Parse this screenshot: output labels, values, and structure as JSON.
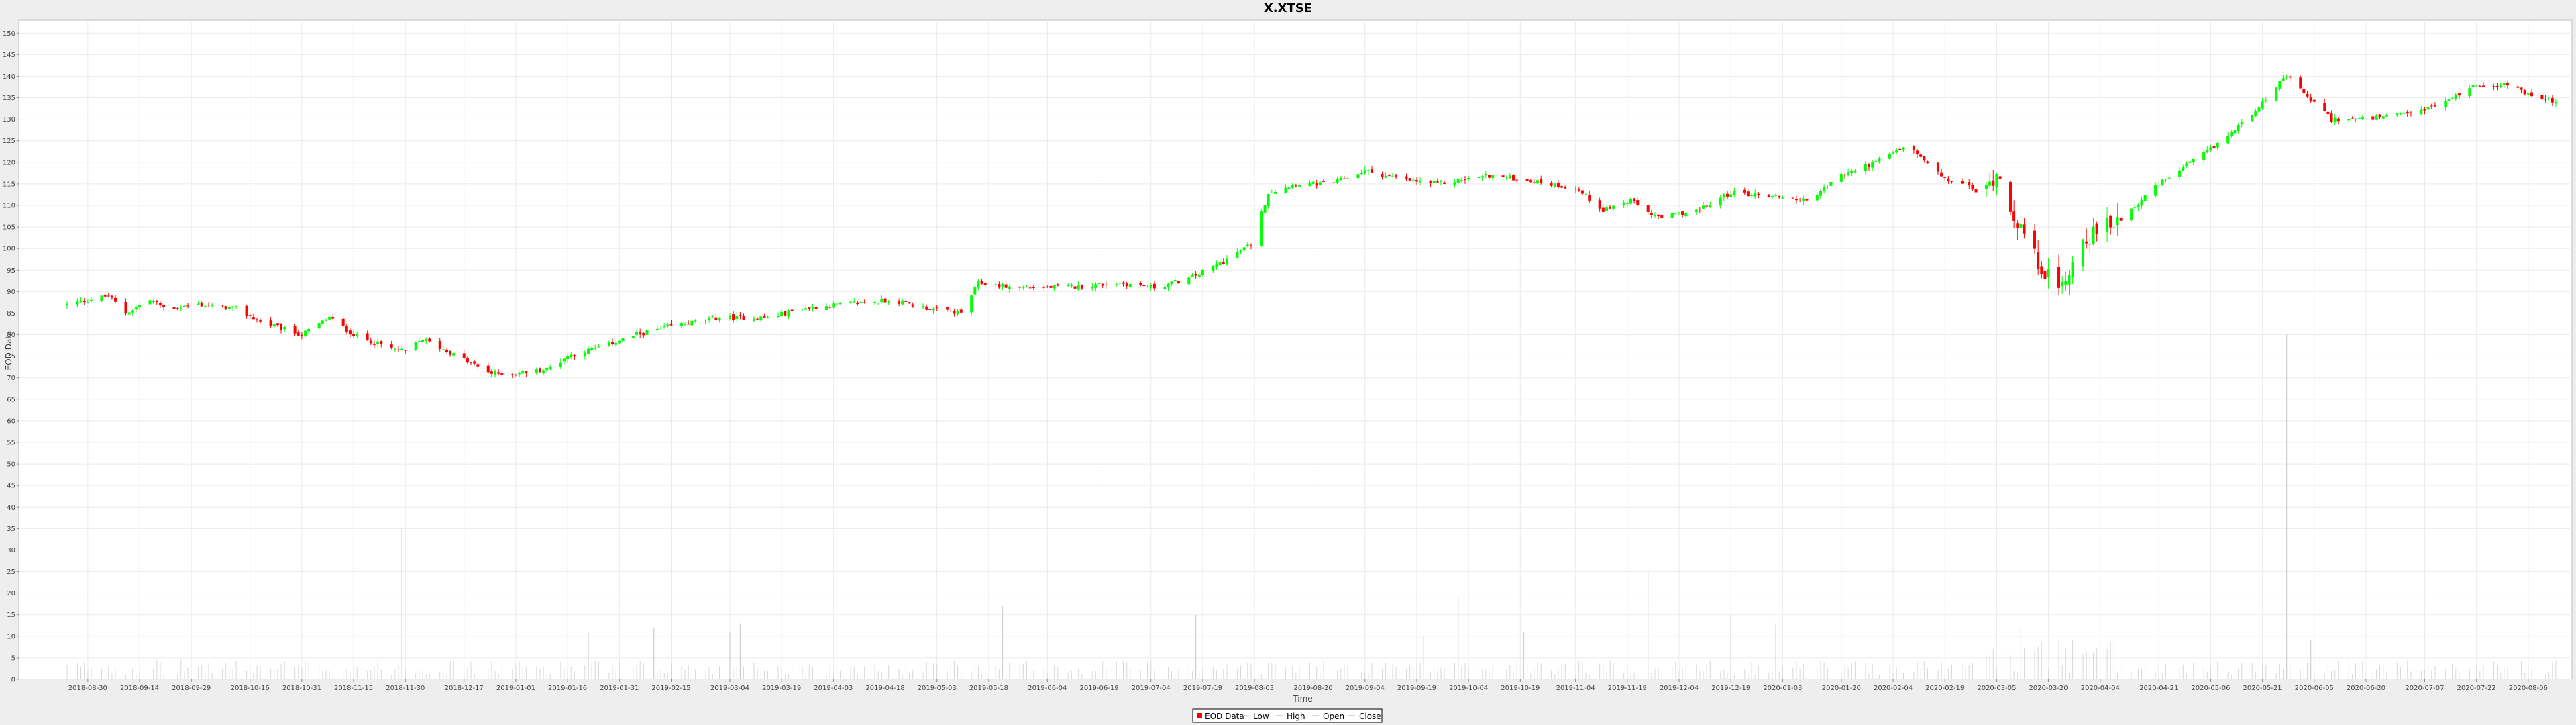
{
  "chart_data": {
    "type": "candlestick",
    "title": "X.XTSE",
    "xlabel": "Time",
    "ylabel": "EOD Data",
    "ylim": [
      0,
      153
    ],
    "yticks": [
      0,
      5,
      10,
      15,
      20,
      25,
      30,
      35,
      40,
      45,
      50,
      55,
      60,
      65,
      70,
      75,
      80,
      85,
      90,
      95,
      100,
      105,
      110,
      115,
      120,
      125,
      130,
      135,
      140,
      145,
      150
    ],
    "x_range": [
      "2018-08-24",
      "2020-08-14"
    ],
    "xticks": [
      "2018-08-30",
      "2018-09-14",
      "2018-09-29",
      "2018-10-16",
      "2018-10-31",
      "2018-11-15",
      "2018-11-30",
      "2018-12-17",
      "2019-01-01",
      "2019-01-16",
      "2019-01-31",
      "2019-02-15",
      "2019-03-04",
      "2019-03-19",
      "2019-04-03",
      "2019-04-18",
      "2019-05-03",
      "2019-05-18",
      "2019-06-04",
      "2019-06-19",
      "2019-07-04",
      "2019-07-19",
      "2019-08-03",
      "2019-08-20",
      "2019-09-04",
      "2019-09-19",
      "2019-10-04",
      "2019-10-19",
      "2019-11-04",
      "2019-11-19",
      "2019-12-04",
      "2019-12-19",
      "2020-01-03",
      "2020-01-20",
      "2020-02-04",
      "2020-02-19",
      "2020-03-05",
      "2020-03-20",
      "2020-04-04",
      "2020-04-21",
      "2020-05-06",
      "2020-05-21",
      "2020-06-05",
      "2020-06-20",
      "2020-07-07",
      "2020-07-22",
      "2020-08-06"
    ],
    "close_path": [
      [
        "2018-08-24",
        87
      ],
      [
        "2018-09-05",
        89
      ],
      [
        "2018-09-10",
        85
      ],
      [
        "2018-09-17",
        88
      ],
      [
        "2018-09-22",
        86
      ],
      [
        "2018-10-01",
        87
      ],
      [
        "2018-10-12",
        86
      ],
      [
        "2018-10-19",
        83
      ],
      [
        "2018-10-31",
        80
      ],
      [
        "2018-11-08",
        84
      ],
      [
        "2018-11-15",
        80
      ],
      [
        "2018-11-25",
        77
      ],
      [
        "2018-11-30",
        76
      ],
      [
        "2018-12-05",
        79
      ],
      [
        "2018-12-15",
        75
      ],
      [
        "2018-12-25",
        71
      ],
      [
        "2019-01-01",
        71
      ],
      [
        "2019-01-10",
        72
      ],
      [
        "2019-01-16",
        75
      ],
      [
        "2019-01-25",
        77
      ],
      [
        "2019-02-05",
        80
      ],
      [
        "2019-02-15",
        82
      ],
      [
        "2019-03-01",
        84
      ],
      [
        "2019-03-15",
        84
      ],
      [
        "2019-03-25",
        86
      ],
      [
        "2019-04-05",
        87
      ],
      [
        "2019-04-20",
        88
      ],
      [
        "2019-05-01",
        86
      ],
      [
        "2019-05-10",
        85
      ],
      [
        "2019-05-15",
        92
      ],
      [
        "2019-05-25",
        91
      ],
      [
        "2019-06-10",
        91
      ],
      [
        "2019-06-25",
        92
      ],
      [
        "2019-07-05",
        91
      ],
      [
        "2019-07-15",
        93
      ],
      [
        "2019-07-25",
        97
      ],
      [
        "2019-08-02",
        101
      ],
      [
        "2019-08-07",
        113
      ],
      [
        "2019-08-15",
        115
      ],
      [
        "2019-08-25",
        115
      ],
      [
        "2019-09-04",
        118
      ],
      [
        "2019-09-15",
        116
      ],
      [
        "2019-09-25",
        115
      ],
      [
        "2019-10-10",
        117
      ],
      [
        "2019-10-20",
        116
      ],
      [
        "2019-11-04",
        114
      ],
      [
        "2019-11-12",
        109
      ],
      [
        "2019-11-20",
        111
      ],
      [
        "2019-11-28",
        107
      ],
      [
        "2019-12-10",
        109
      ],
      [
        "2019-12-19",
        113
      ],
      [
        "2020-01-03",
        112
      ],
      [
        "2020-01-10",
        111
      ],
      [
        "2020-01-20",
        117
      ],
      [
        "2020-01-30",
        120
      ],
      [
        "2020-02-08",
        124
      ],
      [
        "2020-02-19",
        116
      ],
      [
        "2020-02-25",
        115
      ],
      [
        "2020-03-01",
        112
      ],
      [
        "2020-03-05",
        118
      ],
      [
        "2020-03-10",
        108
      ],
      [
        "2020-03-16",
        98
      ],
      [
        "2020-03-23",
        90
      ],
      [
        "2020-03-30",
        102
      ],
      [
        "2020-04-10",
        107
      ],
      [
        "2020-04-21",
        115
      ],
      [
        "2020-05-06",
        123
      ],
      [
        "2020-05-15",
        129
      ],
      [
        "2020-05-21",
        134
      ],
      [
        "2020-05-28",
        140
      ],
      [
        "2020-06-02",
        136
      ],
      [
        "2020-06-10",
        130
      ],
      [
        "2020-06-20",
        130
      ],
      [
        "2020-07-01",
        131
      ],
      [
        "2020-07-10",
        133
      ],
      [
        "2020-07-22",
        138
      ],
      [
        "2020-08-01",
        138
      ],
      [
        "2020-08-08",
        135
      ],
      [
        "2020-08-14",
        134
      ]
    ],
    "volume_spikes": [
      [
        "2018-11-29",
        35
      ],
      [
        "2019-01-22",
        11
      ],
      [
        "2019-02-10",
        12
      ],
      [
        "2019-03-04",
        11
      ],
      [
        "2019-03-07",
        13
      ],
      [
        "2019-05-22",
        17
      ],
      [
        "2019-07-17",
        15
      ],
      [
        "2019-09-21",
        10
      ],
      [
        "2019-10-01",
        19
      ],
      [
        "2019-10-20",
        11
      ],
      [
        "2019-11-25",
        25
      ],
      [
        "2019-12-19",
        15
      ],
      [
        "2020-01-01",
        13
      ],
      [
        "2020-03-12",
        12
      ],
      [
        "2020-05-28",
        80
      ],
      [
        "2020-06-04",
        9
      ]
    ],
    "series": [
      {
        "name": "EOD Data",
        "color": "#ff0000"
      },
      {
        "name": "Low"
      },
      {
        "name": "High"
      },
      {
        "name": "Open"
      },
      {
        "name": "Close"
      }
    ],
    "legend_position": "bottom-center",
    "up_color": "#00ff00",
    "down_color": "#ff0000",
    "grid": true
  }
}
